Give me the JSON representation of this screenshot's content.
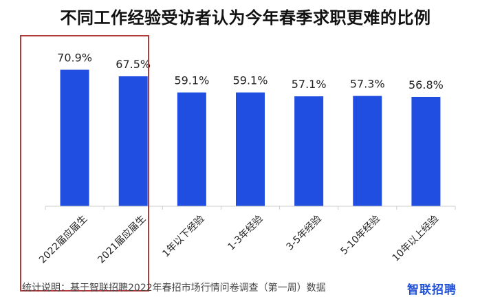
{
  "chart_data": {
    "type": "bar",
    "title": "不同工作经验受访者认为今年春季求职更难的比例",
    "categories": [
      "2022届应届生",
      "2021届应届生",
      "1年以下经验",
      "1-3年经验",
      "3-5年经验",
      "5-10年经验",
      "10年以上经验"
    ],
    "values": [
      70.9,
      67.5,
      59.1,
      59.1,
      57.1,
      57.3,
      56.8
    ],
    "value_labels": [
      "70.9%",
      "67.5%",
      "59.1%",
      "59.1%",
      "57.1%",
      "57.3%",
      "56.8%"
    ],
    "unit": "%",
    "ylim": [
      0,
      100
    ],
    "grid": false,
    "highlighted_categories": [
      "2022届应届生",
      "2021届应届生"
    ],
    "colors": {
      "bar": "#1f4ee0",
      "highlight_border": "#b03b3b",
      "axis": "#cccccc"
    }
  },
  "footer": {
    "note": "统计说明：基于智联招聘2022年春招市场行情问卷调查（第一周）数据",
    "logo": "智联招聘"
  }
}
